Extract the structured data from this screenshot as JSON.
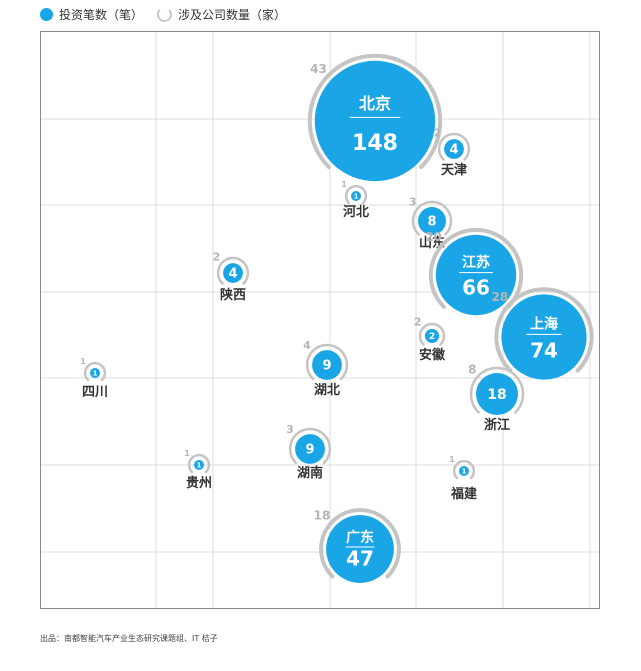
{
  "legend": {
    "count_label": "投资笔数（笔）",
    "company_label": "涉及公司数量（家）"
  },
  "colors": {
    "bubble": "#1aa5e6",
    "ring": "#c4c4c4",
    "grid": "#dedede",
    "frame": "#888888"
  },
  "chart_data": {
    "type": "bubble",
    "series": [
      {
        "name": "投资笔数（笔）",
        "metric": "investment_count"
      },
      {
        "name": "涉及公司数量（家）",
        "metric": "company_count"
      }
    ],
    "points": [
      {
        "region": "北京",
        "investments": 148,
        "companies": 43,
        "label_inside": true
      },
      {
        "region": "天津",
        "investments": 4,
        "companies": 2,
        "label_inside": false
      },
      {
        "region": "河北",
        "investments": 1,
        "companies": 1,
        "label_inside": false
      },
      {
        "region": "山东",
        "investments": 8,
        "companies": 3,
        "label_inside": false
      },
      {
        "region": "江苏",
        "investments": 66,
        "companies": 20,
        "label_inside": true
      },
      {
        "region": "上海",
        "investments": 74,
        "companies": 28,
        "label_inside": true
      },
      {
        "region": "陕西",
        "investments": 4,
        "companies": 2,
        "label_inside": false
      },
      {
        "region": "安徽",
        "investments": 2,
        "companies": 2,
        "label_inside": false
      },
      {
        "region": "湖北",
        "investments": 9,
        "companies": 4,
        "label_inside": false
      },
      {
        "region": "浙江",
        "investments": 18,
        "companies": 8,
        "label_inside": false
      },
      {
        "region": "四川",
        "investments": 1,
        "companies": 1,
        "label_inside": false
      },
      {
        "region": "湖南",
        "investments": 9,
        "companies": 3,
        "label_inside": false
      },
      {
        "region": "贵州",
        "investments": 1,
        "companies": 1,
        "label_inside": false
      },
      {
        "region": "福建",
        "investments": 1,
        "companies": 1,
        "label_inside": false
      },
      {
        "region": "广东",
        "investments": 47,
        "companies": 18,
        "label_inside": true
      }
    ],
    "grid": true
  },
  "source": "出品：南都智能汽车产业生态研究课题组、IT 桔子"
}
